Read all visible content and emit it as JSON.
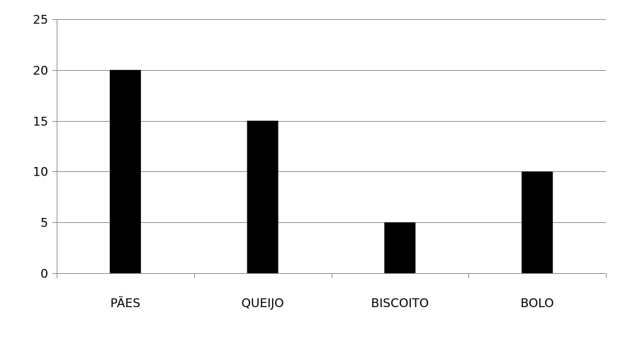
{
  "chart_data": {
    "type": "bar",
    "title": "",
    "xlabel": "",
    "ylabel": "",
    "categories": [
      "PÃES",
      "QUEIJO",
      "BISCOITO",
      "BOLO"
    ],
    "values": [
      20,
      15,
      5,
      10
    ],
    "ylim": [
      0,
      25
    ],
    "yticks": [
      0,
      5,
      10,
      15,
      20,
      25
    ],
    "grid": true,
    "legend": "none",
    "colors": {
      "bar": "#000000",
      "grid": "#8c8c8c",
      "axis": "#8c8c8c",
      "text": "#000000"
    }
  }
}
